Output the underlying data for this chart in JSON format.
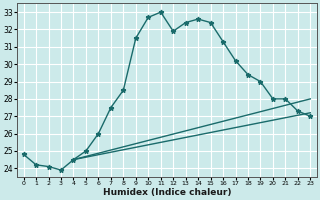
{
  "title": "",
  "xlabel": "Humidex (Indice chaleur)",
  "ylabel": "",
  "bg_color": "#cceaea",
  "grid_color": "#ffffff",
  "line_color": "#1a6b6b",
  "xlim": [
    -0.5,
    23.5
  ],
  "ylim": [
    23.5,
    33.5
  ],
  "yticks": [
    24,
    25,
    26,
    27,
    28,
    29,
    30,
    31,
    32,
    33
  ],
  "xticks": [
    0,
    1,
    2,
    3,
    4,
    5,
    6,
    7,
    8,
    9,
    10,
    11,
    12,
    13,
    14,
    15,
    16,
    17,
    18,
    19,
    20,
    21,
    22,
    23
  ],
  "line1_x": [
    0,
    1,
    2,
    3,
    4,
    5,
    6,
    7,
    8,
    9,
    10,
    11,
    12,
    13,
    14,
    15,
    16,
    17,
    18,
    19,
    20,
    21,
    22,
    23
  ],
  "line1_y": [
    24.8,
    24.2,
    24.1,
    23.9,
    24.5,
    25.0,
    26.0,
    27.5,
    28.5,
    31.5,
    32.7,
    33.0,
    31.9,
    32.4,
    32.6,
    32.4,
    31.3,
    30.2,
    29.4,
    29.0,
    28.0,
    28.0,
    27.3,
    27.0
  ],
  "line2_x": [
    4,
    23
  ],
  "line2_y": [
    24.5,
    28.0
  ],
  "line3_x": [
    4,
    23
  ],
  "line3_y": [
    24.5,
    27.2
  ],
  "figwidth": 3.2,
  "figheight": 2.0,
  "dpi": 100
}
